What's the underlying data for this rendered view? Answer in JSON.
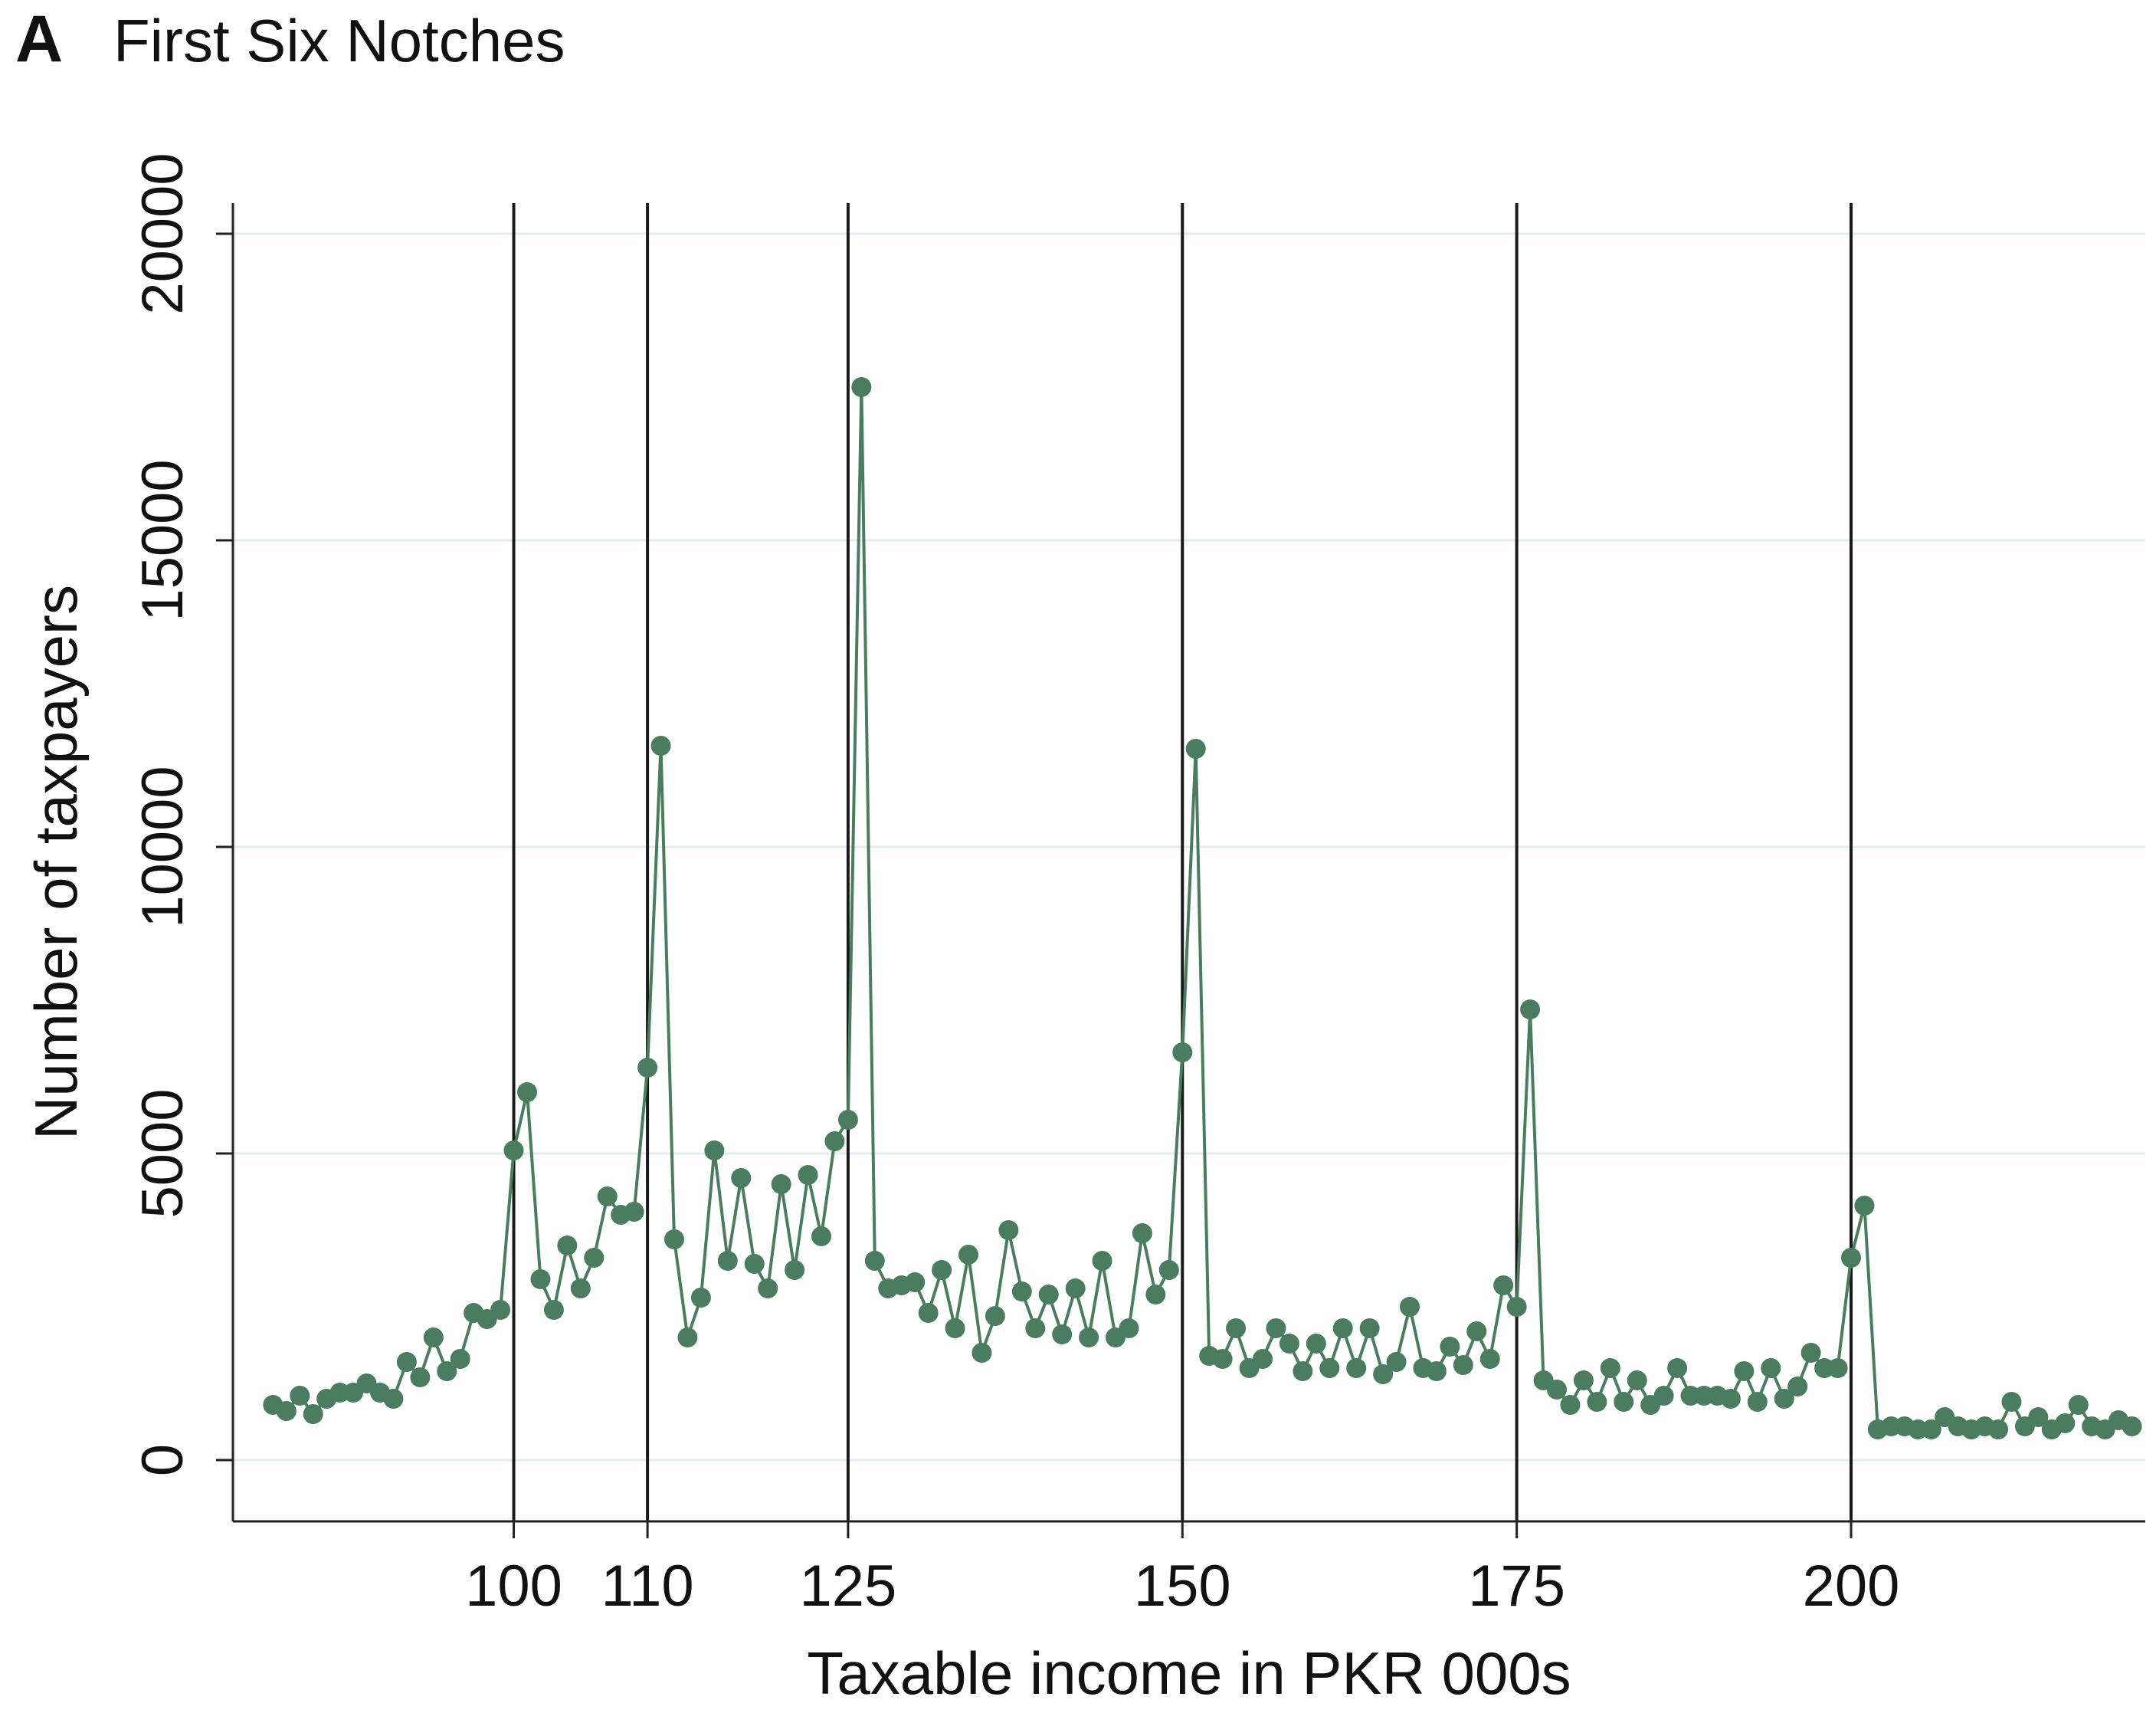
{
  "panel_letter": "A",
  "chart_data": {
    "type": "line",
    "title": "First Six Notches",
    "xlabel": "Taxable income in PKR 000s",
    "ylabel": "Number of taxpayers",
    "xlim": [
      79,
      222
    ],
    "ylim": [
      -1000,
      20500
    ],
    "yticks": [
      0,
      5000,
      10000,
      15000,
      20000
    ],
    "xticks": [
      100,
      110,
      125,
      150,
      175,
      200
    ],
    "notches": [
      100,
      110,
      125,
      150,
      175,
      200
    ],
    "grid": "horizontal",
    "series_color": "#4a7d5f",
    "x_start": 82,
    "x_step": 1,
    "values": [
      900,
      800,
      1050,
      750,
      1000,
      1100,
      1100,
      1250,
      1100,
      1000,
      1600,
      1350,
      2000,
      1450,
      1650,
      2400,
      2300,
      2450,
      5050,
      6000,
      2950,
      2450,
      3500,
      2800,
      3300,
      4300,
      4000,
      4050,
      6400,
      11650,
      3600,
      2000,
      2650,
      5050,
      3250,
      4600,
      3200,
      2800,
      4500,
      3100,
      4650,
      3650,
      5200,
      5550,
      17500,
      3250,
      2800,
      2850,
      2900,
      2400,
      3100,
      2150,
      3350,
      1750,
      2350,
      3750,
      2750,
      2150,
      2700,
      2050,
      2800,
      2000,
      3250,
      2000,
      2150,
      3700,
      2700,
      3100,
      6650,
      11600,
      1700,
      1650,
      2150,
      1500,
      1650,
      2150,
      1900,
      1450,
      1900,
      1500,
      2150,
      1500,
      2150,
      1400,
      1600,
      2500,
      1500,
      1450,
      1850,
      1550,
      2100,
      1650,
      2850,
      2500,
      7350,
      1300,
      1150,
      900,
      1300,
      950,
      1500,
      950,
      1300,
      900,
      1050,
      1500,
      1050,
      1050,
      1050,
      1000,
      1450,
      950,
      1500,
      1000,
      1200,
      1750,
      1500,
      1500,
      3300,
      4150,
      500,
      550,
      550,
      500,
      500,
      700,
      550,
      500,
      550,
      500,
      950,
      550,
      700,
      500,
      600,
      900,
      550,
      500,
      650,
      550
    ]
  }
}
